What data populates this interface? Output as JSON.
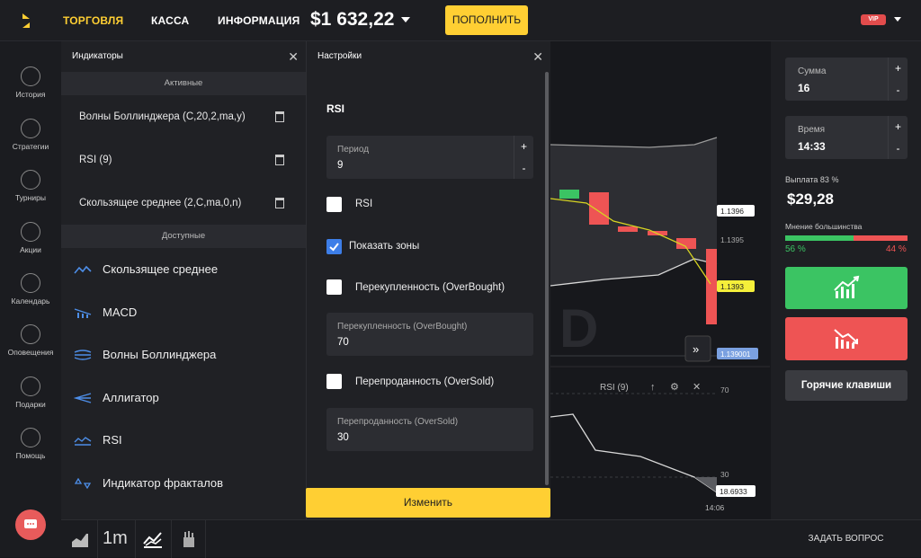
{
  "topbar": {
    "nav_trading": "ТОРГОВЛЯ",
    "nav_cashier": "КАССА",
    "nav_info": "ИНФОРМАЦИЯ",
    "balance": "$1 632,22",
    "topup_label": "ПОПОЛНИТЬ",
    "vip_badge": "VIP"
  },
  "sidebar": {
    "items": [
      {
        "label": "История",
        "icon": "clock-icon"
      },
      {
        "label": "Стратегии",
        "icon": "strategy-icon"
      },
      {
        "label": "Турниры",
        "icon": "trophy-icon"
      },
      {
        "label": "Акции",
        "icon": "percent-icon"
      },
      {
        "label": "Календарь",
        "icon": "calendar-icon"
      },
      {
        "label": "Оповещения",
        "icon": "bell-icon"
      },
      {
        "label": "Подарки",
        "icon": "gift-icon"
      },
      {
        "label": "Помощь",
        "icon": "help-icon"
      }
    ]
  },
  "indicators": {
    "title": "Индикаторы",
    "active_section": "Активные",
    "active": [
      "Волны Боллинджера (C,20,2,ma,y)",
      "RSI (9)",
      "Скользящее среднее (2,C,ma,0,n)"
    ],
    "available_section": "Доступные",
    "available": [
      "Скользящее среднее",
      "MACD",
      "Волны Боллинджера",
      "Аллигатор",
      "RSI",
      "Индикатор фракталов"
    ]
  },
  "settings": {
    "title": "Настройки",
    "indicator_name": "RSI",
    "period_label": "Период",
    "period_value": "9",
    "rsi_label": "RSI",
    "show_zones_label": "Показать зоны",
    "overbought_check_label": "Перекупленность (OverBought)",
    "overbought_field_label": "Перекупленность (OverBought)",
    "overbought_value": "70",
    "oversold_check_label": "Перепроданность (OverSold)",
    "oversold_field_label": "Перепроданность (OverSold)",
    "oversold_value": "30",
    "apply_label": "Изменить"
  },
  "chart": {
    "price_tags": [
      "1.1396",
      "1.1395",
      "1.1393",
      "1.139001"
    ],
    "rsi_label": "RSI (9)",
    "rsi_levels": [
      "70",
      "30"
    ],
    "rsi_value": "18.6933",
    "time_label": "14:06",
    "watermark": "D"
  },
  "trade": {
    "amount_label": "Сумма",
    "amount_value": "16",
    "time_label": "Время",
    "time_value": "14:33",
    "payout_label": "Выплата 83 %",
    "payout_value": "$29,28",
    "majority_label": "Мнение большинства",
    "majority_up": "56 %",
    "majority_down": "44 %",
    "majority_up_fraction": 0.56,
    "hotkeys_label": "Горячие клавиши",
    "ask_label": "ЗАДАТЬ ВОПРОС",
    "colors": {
      "up": "#3bc463",
      "down": "#ee5454",
      "accent": "#ffcf33"
    }
  },
  "bottombar": {
    "timeframe": "1m"
  }
}
